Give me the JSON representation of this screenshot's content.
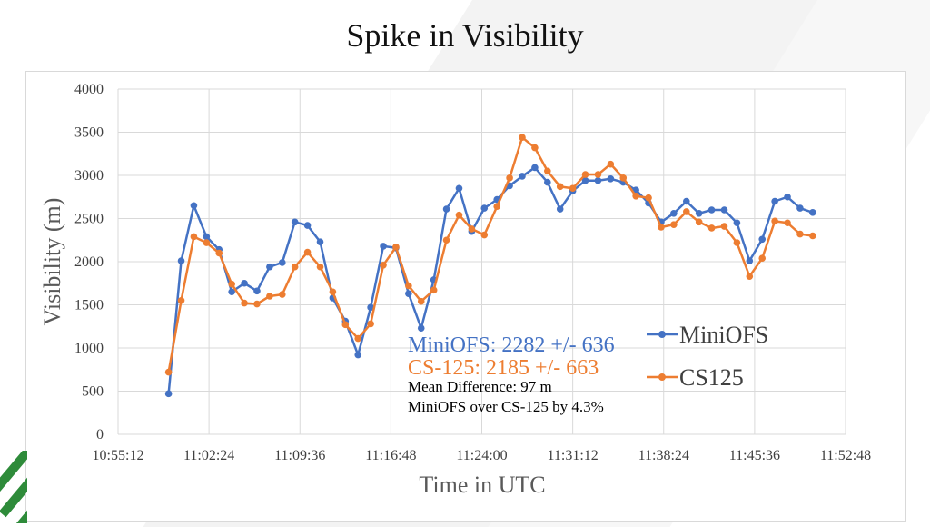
{
  "title": "Spike in Visibility",
  "chart_data": {
    "type": "line",
    "xlabel": "Time in UTC",
    "ylabel": "Visibility (m)",
    "x_ticks": [
      "10:55:12",
      "11:02:24",
      "11:09:36",
      "11:16:48",
      "11:24:00",
      "11:31:12",
      "11:38:24",
      "11:45:36",
      "11:52:48"
    ],
    "xlim": [
      "10:55:12",
      "11:52:48"
    ],
    "ylim": [
      0,
      4000
    ],
    "y_ticks": [
      0,
      500,
      1000,
      1500,
      2000,
      2500,
      3000,
      3500,
      4000
    ],
    "grid": true,
    "legend_position": "right",
    "x": [
      "10:59:12",
      "11:00:12",
      "11:01:12",
      "11:02:12",
      "11:03:12",
      "11:04:12",
      "11:05:12",
      "11:06:12",
      "11:07:12",
      "11:08:12",
      "11:09:12",
      "11:10:12",
      "11:11:12",
      "11:12:12",
      "11:13:12",
      "11:14:12",
      "11:15:12",
      "11:16:12",
      "11:17:12",
      "11:18:12",
      "11:19:12",
      "11:20:12",
      "11:21:12",
      "11:22:12",
      "11:23:12",
      "11:24:12",
      "11:25:12",
      "11:26:12",
      "11:27:12",
      "11:28:12",
      "11:29:12",
      "11:30:12",
      "11:31:12",
      "11:32:12",
      "11:33:12",
      "11:34:12",
      "11:35:12",
      "11:36:12",
      "11:37:12",
      "11:38:12",
      "11:39:12",
      "11:40:12",
      "11:41:12",
      "11:42:12",
      "11:43:12",
      "11:44:12",
      "11:45:12",
      "11:46:12",
      "11:47:12",
      "11:48:12",
      "11:49:12",
      "11:50:12",
      "11:51:12"
    ],
    "series": [
      {
        "name": "MiniOFS",
        "color": "#4472c4",
        "values": [
          470,
          2010,
          2650,
          2290,
          2140,
          1650,
          1750,
          1660,
          1940,
          1990,
          2460,
          2420,
          2230,
          1580,
          1310,
          920,
          1470,
          2180,
          2160,
          1630,
          1230,
          1790,
          2610,
          2850,
          2350,
          2620,
          2720,
          2880,
          2990,
          3090,
          2920,
          2610,
          2820,
          2940,
          2940,
          2960,
          2920,
          2830,
          2680,
          2460,
          2560,
          2700,
          2560,
          2600,
          2600,
          2450,
          2010,
          2260,
          2700,
          2750,
          2620,
          2570,
          null
        ]
      },
      {
        "name": "CS125",
        "color": "#ed7d31",
        "values": [
          720,
          1550,
          2290,
          2220,
          2100,
          1740,
          1520,
          1510,
          1600,
          1620,
          1940,
          2110,
          1940,
          1650,
          1270,
          1110,
          1280,
          1960,
          2170,
          1720,
          1540,
          1670,
          2250,
          2540,
          2380,
          2310,
          2640,
          2970,
          3440,
          3320,
          3050,
          2870,
          2850,
          3010,
          3010,
          3130,
          2970,
          2760,
          2740,
          2400,
          2430,
          2580,
          2460,
          2390,
          2410,
          2220,
          1830,
          2040,
          2470,
          2450,
          2320,
          2300,
          null
        ]
      }
    ],
    "annotations": {
      "miniofs_stat": "MiniOFS: 2282 +/- 636",
      "cs125_stat": "CS-125: 2185 +/- 663",
      "mean_diff": "Mean Difference: 97 m",
      "over_text": "MiniOFS over CS-125 by 4.3%"
    }
  }
}
